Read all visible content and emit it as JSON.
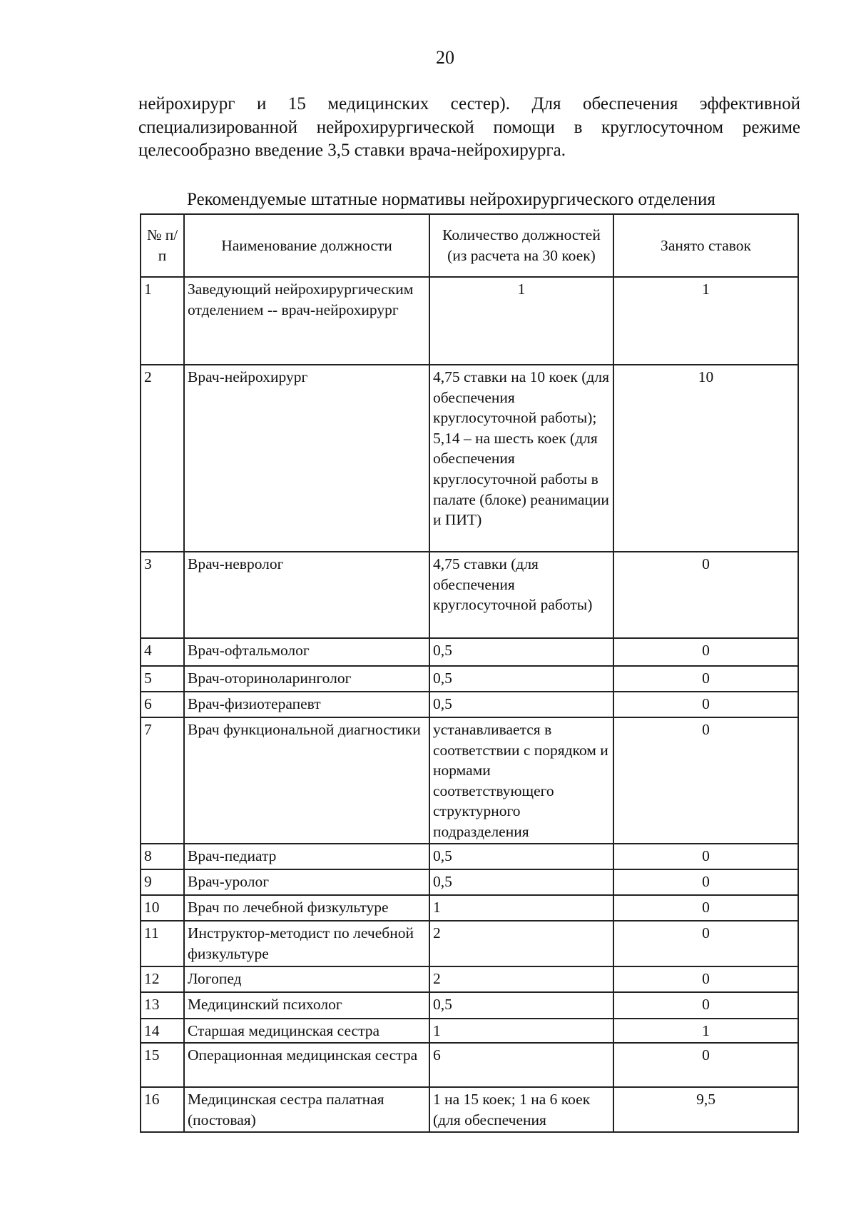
{
  "page_number": "20",
  "paragraph": "нейрохирург и 15 медицинских сестер). Для обеспечения эффективной специализированной нейрохирургической помощи в круглосуточном режиме целесообразно введение 3,5 ставки врача-нейрохирурга.",
  "table": {
    "caption": "Рекомендуемые штатные нормативы нейрохирургического отделения",
    "headers": [
      "№ п/п",
      "Наименование должности",
      "Количество должностей (из расчета на 30 коек)",
      "Занято ставок"
    ],
    "rows": [
      {
        "n": "1",
        "name": "Заведующий нейрохирургическим отделением -- врач-нейрохирург",
        "qty": "1",
        "occupied": "1"
      },
      {
        "n": "2",
        "name": "Врач-нейрохирург",
        "qty": "4,75 ставки на 10 коек (для обеспечения круглосуточной работы); 5,14 – на шесть коек (для обеспечения круглосуточной работы в палате (блоке) реанимации и ПИТ)",
        "occupied": "10"
      },
      {
        "n": "3",
        "name": "Врач-невролог",
        "qty": "4,75 ставки (для обеспечения круглосуточной работы)",
        "occupied": "0"
      },
      {
        "n": "4",
        "name": "Врач-офтальмолог",
        "qty": "0,5",
        "occupied": "0"
      },
      {
        "n": "5",
        "name": "Врач-оториноларинголог",
        "qty": "0,5",
        "occupied": "0"
      },
      {
        "n": "6",
        "name": "Врач-физиотерапевт",
        "qty": "0,5",
        "occupied": "0"
      },
      {
        "n": "7",
        "name": "Врач функциональной диагностики",
        "qty": "устанавливается в соответствии с порядком и нормами соответствующего структурного подразделения",
        "occupied": "0"
      },
      {
        "n": "8",
        "name": "Врач-педиатр",
        "qty": "0,5",
        "occupied": "0"
      },
      {
        "n": "9",
        "name": "Врач-уролог",
        "qty": "0,5",
        "occupied": "0"
      },
      {
        "n": "10",
        "name": "Врач по лечебной физкультуре",
        "qty": "1",
        "occupied": "0"
      },
      {
        "n": "11",
        "name": "Инструктор-методист по лечебной физкультуре",
        "qty": "2",
        "occupied": "0"
      },
      {
        "n": "12",
        "name": "Логопед",
        "qty": "2",
        "occupied": "0"
      },
      {
        "n": "13",
        "name": "Медицинский психолог",
        "qty": "0,5",
        "occupied": "0"
      },
      {
        "n": "14",
        "name": "Старшая медицинская сестра",
        "qty": "1",
        "occupied": "1"
      },
      {
        "n": "15",
        "name": "Операционная медицинская сестра",
        "qty": "6",
        "occupied": "0"
      },
      {
        "n": "16",
        "name": "Медицинская сестра палатная (постовая)",
        "qty": "1 на 15 коек; 1 на 6 коек (для обеспечения",
        "occupied": "9,5"
      }
    ]
  }
}
